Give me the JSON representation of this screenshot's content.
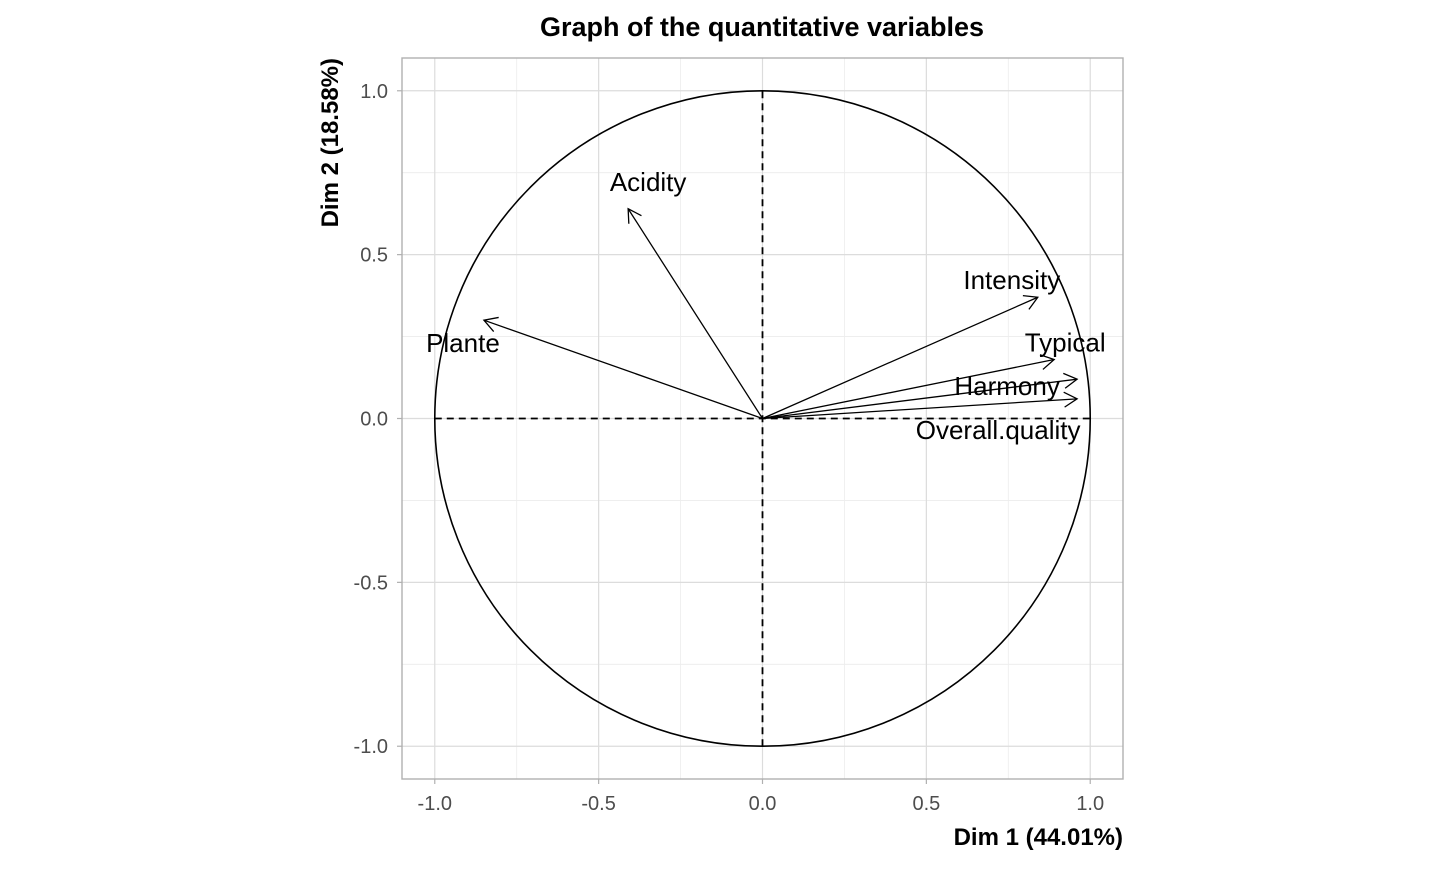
{
  "chart_data": {
    "type": "scatter",
    "title": "Graph of the quantitative variables",
    "xlabel": "Dim 1 (44.01%)",
    "ylabel": "Dim 2 (18.58%)",
    "xlim": [
      -1.1,
      1.1
    ],
    "ylim": [
      -1.1,
      1.1
    ],
    "x_ticks": [
      -1.0,
      -0.5,
      0.0,
      0.5,
      1.0
    ],
    "y_ticks": [
      -1.0,
      -0.5,
      0.0,
      0.5,
      1.0
    ],
    "x_tick_labels": [
      "-1.0",
      "-0.5",
      "0.0",
      "0.5",
      "1.0"
    ],
    "y_tick_labels": [
      "-1.0",
      "-0.5",
      "0.0",
      "0.5",
      "1.0"
    ],
    "grid": true,
    "correlation_circle": true,
    "variables": [
      {
        "name": "Acidity",
        "x": -0.41,
        "y": 0.64
      },
      {
        "name": "Plante",
        "x": -0.85,
        "y": 0.3
      },
      {
        "name": "Intensity",
        "x": 0.84,
        "y": 0.37
      },
      {
        "name": "Typical",
        "x": 0.89,
        "y": 0.18
      },
      {
        "name": "Harmony",
        "x": 0.96,
        "y": 0.12
      },
      {
        "name": "Overall.quality",
        "x": 0.96,
        "y": 0.06
      }
    ]
  }
}
